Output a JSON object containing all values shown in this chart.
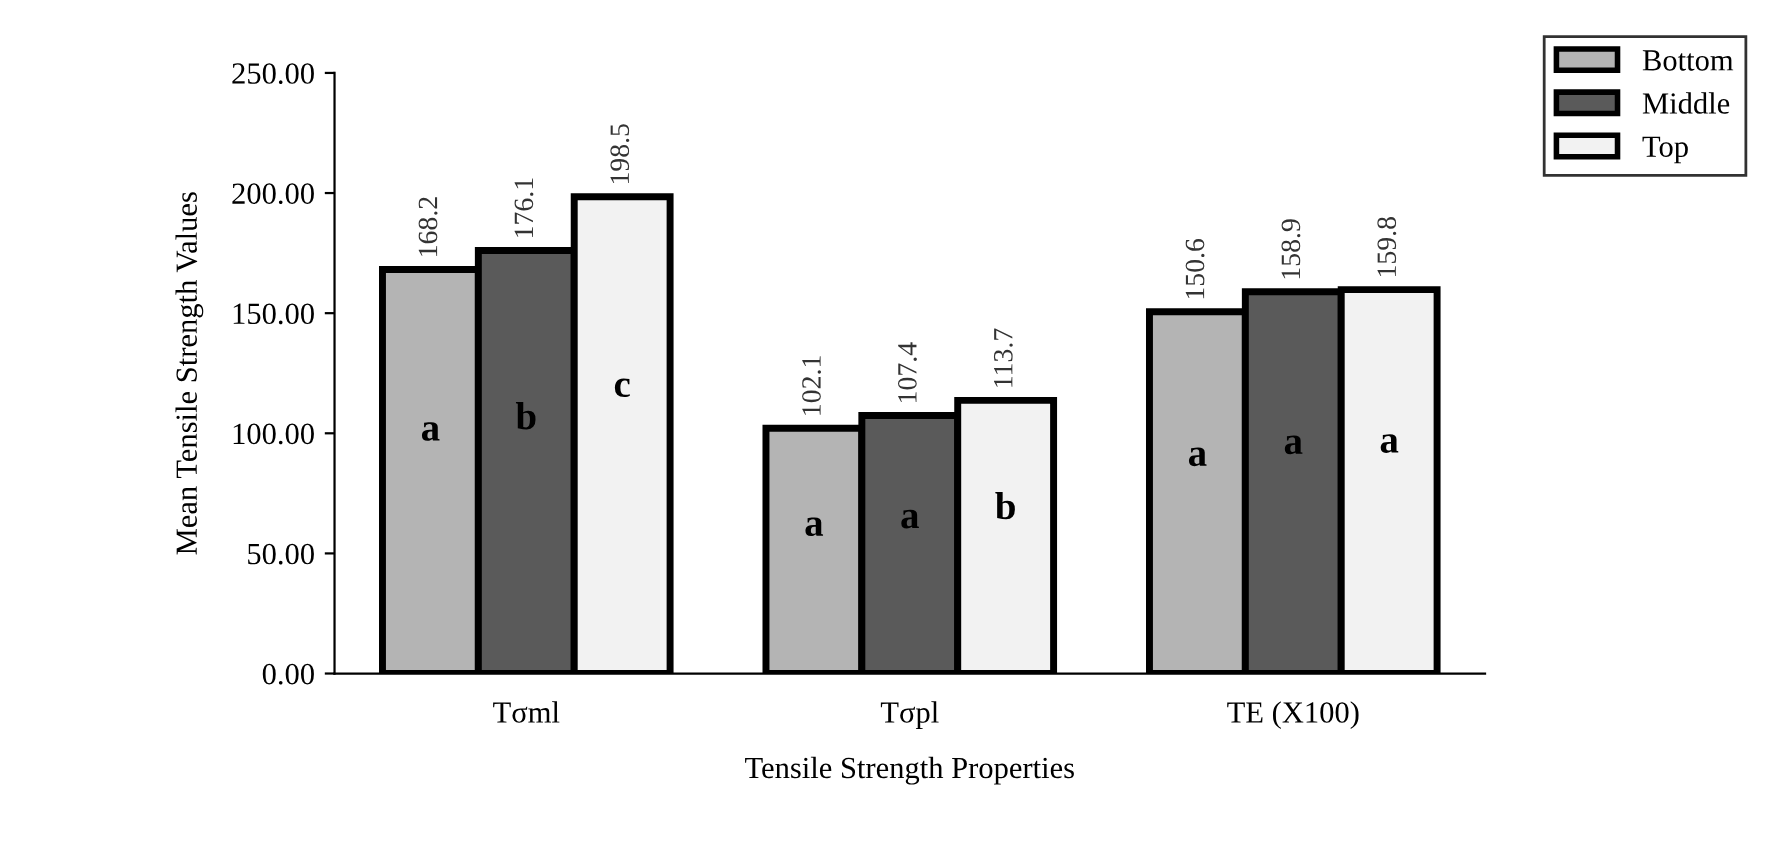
{
  "chart_data": {
    "type": "bar",
    "xlabel": "Tensile Strength Properties",
    "ylabel": "Mean Tensile Strength Values",
    "categories": [
      "Tσml",
      "Tσpl",
      "TE (X100)"
    ],
    "series": [
      {
        "name": "Bottom",
        "color": "#b4b4b4",
        "values": [
          168.2,
          102.1,
          150.6
        ]
      },
      {
        "name": "Middle",
        "color": "#5a5a5a",
        "values": [
          176.1,
          107.4,
          158.9
        ]
      },
      {
        "name": "Top",
        "color": "#f2f2f2",
        "values": [
          198.5,
          113.7,
          159.8
        ]
      }
    ],
    "ylim": [
      0,
      250
    ],
    "yticks": [
      {
        "value": 0,
        "label": "0.00"
      },
      {
        "value": 50,
        "label": "50.00"
      },
      {
        "value": 100,
        "label": "100.00"
      },
      {
        "value": 150,
        "label": "150.00"
      },
      {
        "value": 200,
        "label": "200.00"
      },
      {
        "value": 250,
        "label": "250.00"
      }
    ],
    "data_labels": true,
    "grid": false,
    "legend": "top right",
    "annotations": [
      "a",
      "b",
      "c",
      "a",
      "a",
      "b",
      "a",
      "a",
      "a"
    ]
  }
}
